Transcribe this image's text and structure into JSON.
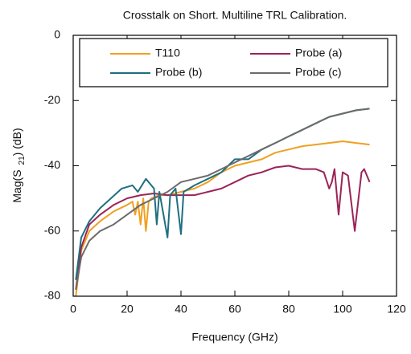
{
  "chart_data": {
    "type": "line",
    "title": "Crosstalk on Short. Multiline TRL Calibration.",
    "xlabel": "Frequency (GHz)",
    "ylabel_parts": [
      "Mag(S",
      "21",
      ") (dB)"
    ],
    "xlim": [
      0,
      120
    ],
    "xticks": [
      0,
      20,
      40,
      60,
      80,
      100,
      120
    ],
    "ylim": [
      -80,
      0
    ],
    "yticks": [
      -80,
      -60,
      -40,
      -20,
      0
    ],
    "legend": "top",
    "series": [
      {
        "name": "T110",
        "color": "#f0a020",
        "x": [
          1,
          3,
          6,
          10,
          15,
          20,
          22,
          23,
          24,
          25,
          26,
          27,
          28,
          29,
          32,
          35,
          40,
          45,
          50,
          55,
          60,
          65,
          70,
          75,
          80,
          85,
          90,
          95,
          100,
          105,
          110
        ],
        "values": [
          -80,
          -66,
          -60,
          -57,
          -54,
          -52,
          -51,
          -55,
          -51,
          -58,
          -50,
          -60,
          -51,
          -50,
          -49,
          -49,
          -48,
          -47,
          -45,
          -42,
          -40,
          -39,
          -38,
          -36,
          -35,
          -34,
          -33.5,
          -33,
          -32.5,
          -33,
          -33.5
        ]
      },
      {
        "name": "Probe (a)",
        "color": "#9b2457",
        "x": [
          1,
          3,
          6,
          10,
          15,
          20,
          25,
          30,
          35,
          40,
          45,
          50,
          55,
          60,
          65,
          70,
          75,
          80,
          85,
          90,
          93,
          95,
          96,
          97,
          98.5,
          100,
          102,
          104.5,
          107,
          108,
          110
        ],
        "values": [
          -78,
          -65,
          -58,
          -55,
          -52,
          -50,
          -49,
          -48.5,
          -49,
          -49,
          -49,
          -48,
          -47,
          -45,
          -43,
          -42,
          -40.5,
          -40,
          -41,
          -41,
          -42,
          -47,
          -45,
          -41,
          -55,
          -42,
          -43,
          -60,
          -42,
          -41,
          -45
        ]
      },
      {
        "name": "Probe (b)",
        "color": "#1f6f80",
        "x": [
          1,
          3,
          6,
          10,
          14,
          18,
          22,
          24,
          27,
          30,
          31,
          32,
          35,
          36,
          38,
          40,
          41,
          45,
          50,
          55,
          60,
          65,
          70,
          75,
          80,
          85,
          90,
          95,
          100,
          105,
          110
        ],
        "values": [
          -75,
          -62,
          -57,
          -53,
          -50,
          -47,
          -46,
          -48,
          -44,
          -47,
          -58,
          -48,
          -62,
          -49,
          -47,
          -61,
          -48,
          -46,
          -44,
          -42,
          -38,
          -38,
          -35,
          -33,
          -31,
          -29,
          -27,
          -25,
          -24,
          -23,
          -22.5
        ]
      },
      {
        "name": "Probe (c)",
        "color": "#6b6b6b",
        "x": [
          1,
          3,
          6,
          10,
          15,
          20,
          25,
          30,
          35,
          40,
          45,
          50,
          55,
          60,
          65,
          70,
          75,
          80,
          85,
          90,
          95,
          100,
          105,
          110
        ],
        "values": [
          -78,
          -68,
          -63,
          -60,
          -58,
          -55,
          -52,
          -50,
          -48,
          -45,
          -44,
          -43,
          -41,
          -39,
          -37,
          -35,
          -33,
          -31,
          -29,
          -27,
          -25,
          -24,
          -23,
          -22.5
        ]
      }
    ]
  }
}
